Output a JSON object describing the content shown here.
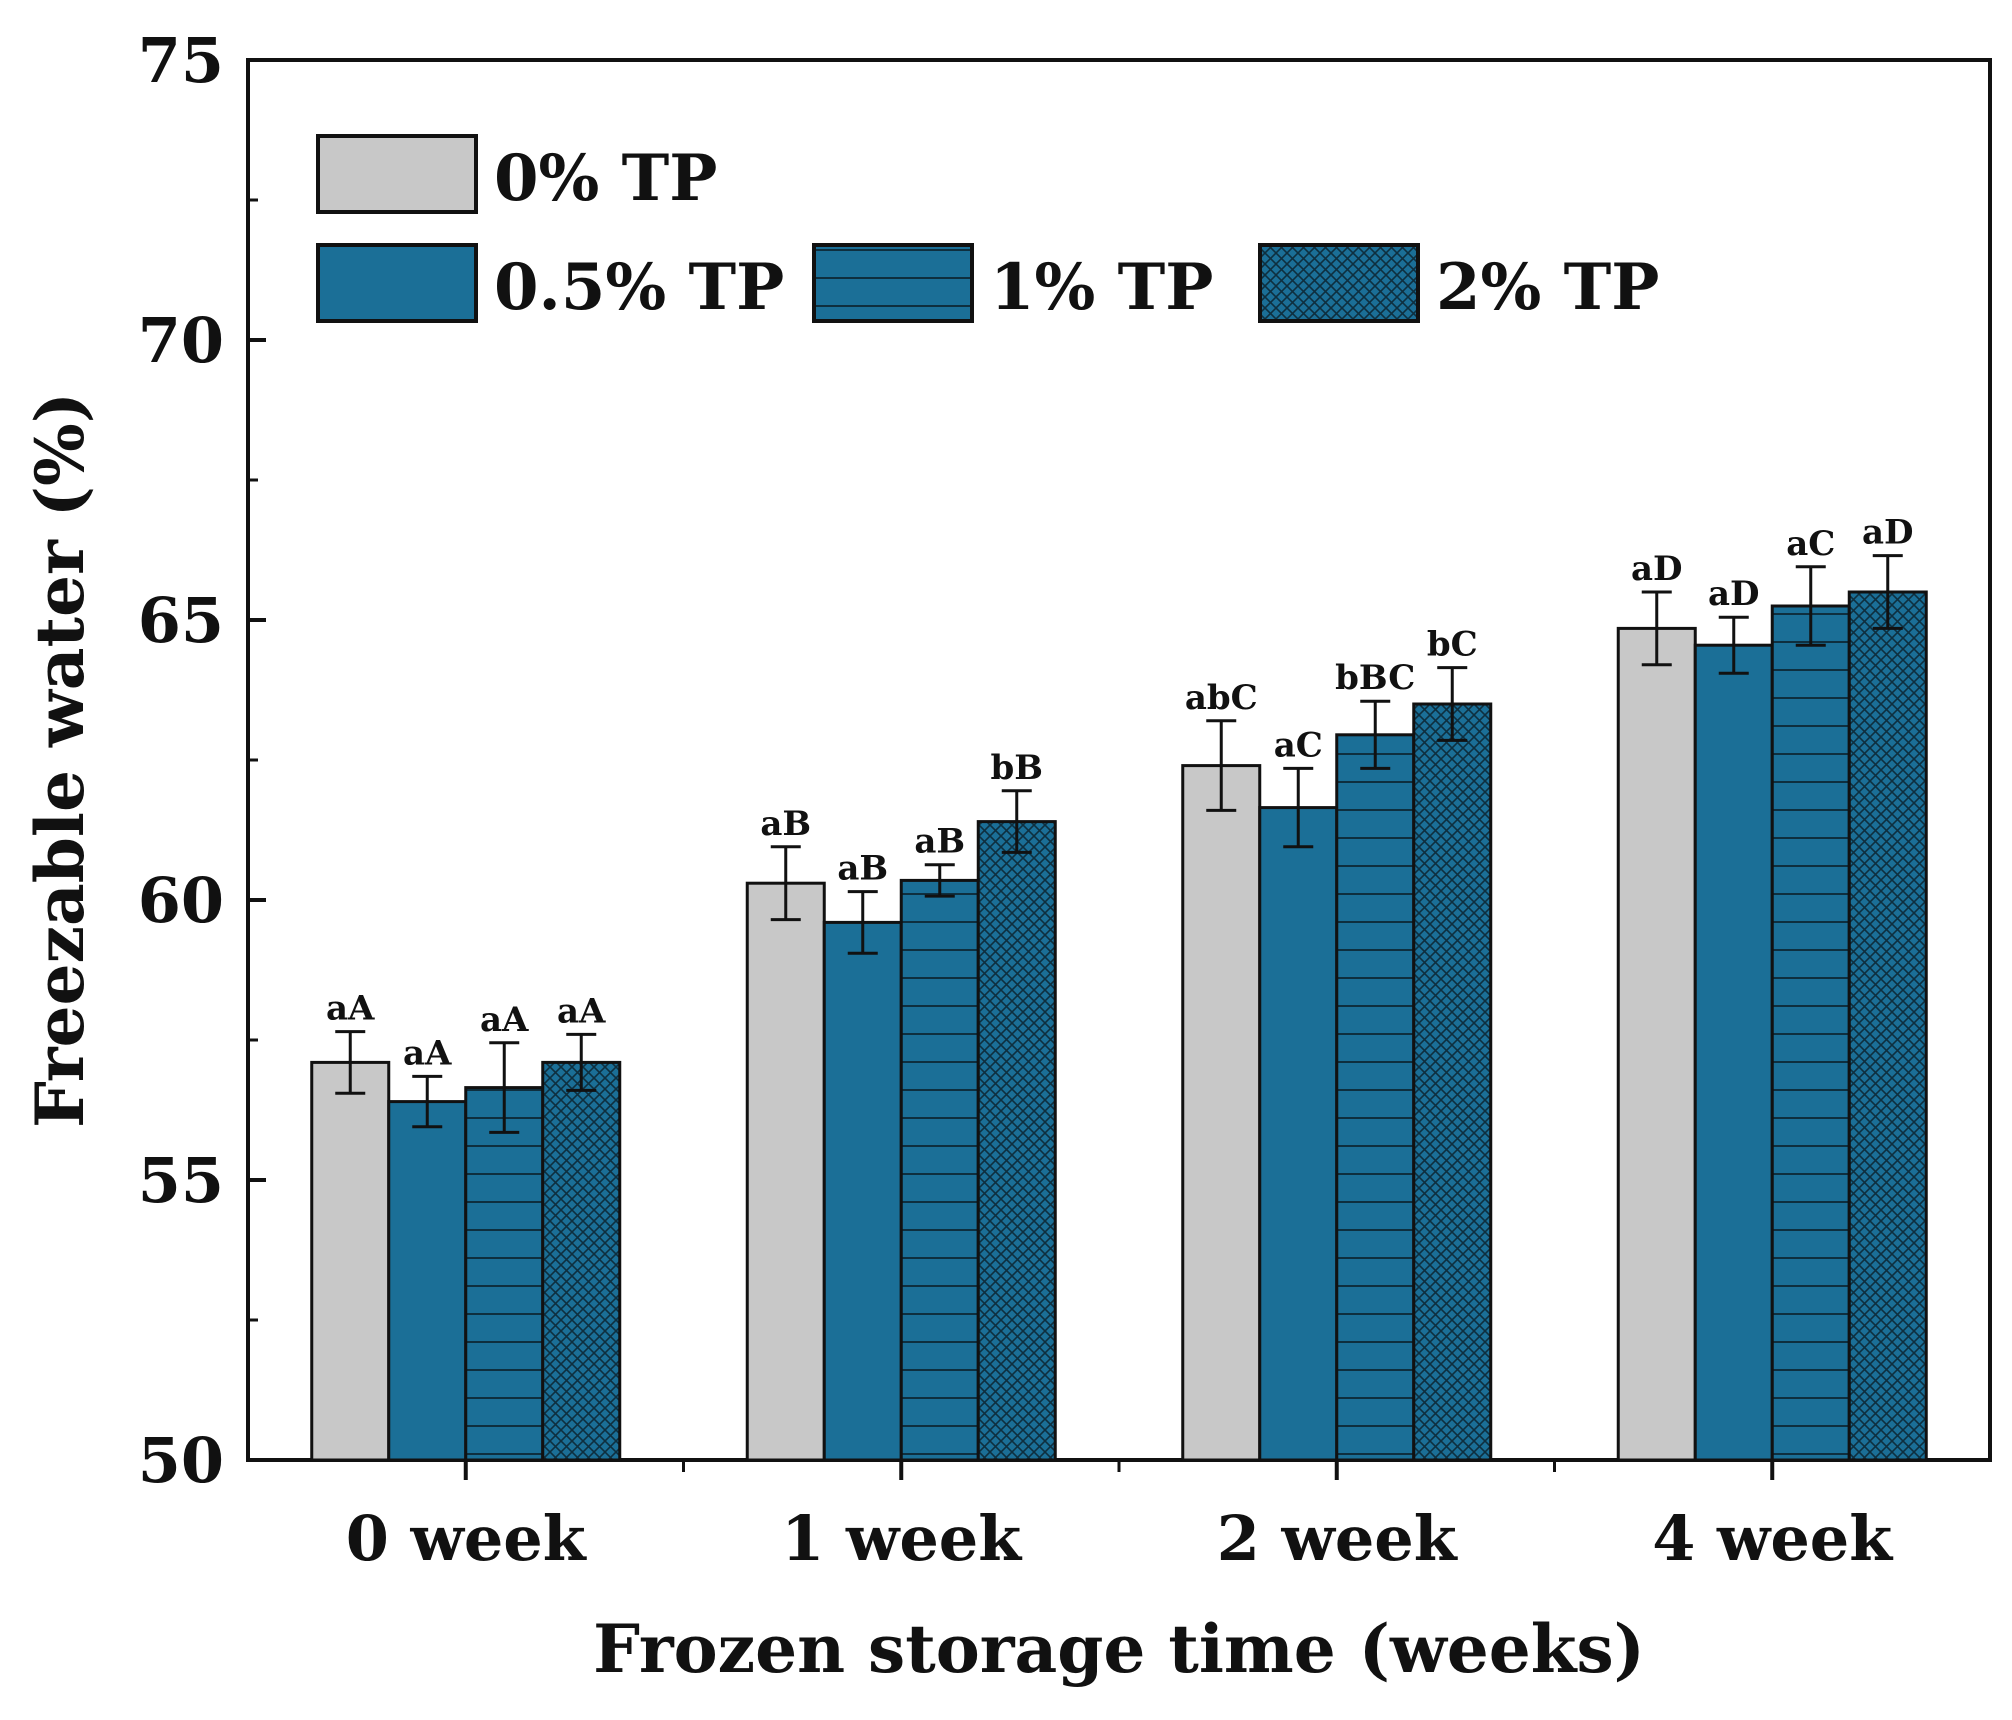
{
  "chart_data": {
    "type": "bar",
    "title": "",
    "xlabel": "Frozen storage time (weeks)",
    "ylabel": "Freezable water (%)",
    "ylim": [
      50,
      75
    ],
    "yticks": [
      50,
      55,
      60,
      65,
      70,
      75
    ],
    "legend_position": "top-left",
    "categories": [
      "0 week",
      "1 week",
      "2 week",
      "4 week"
    ],
    "series": [
      {
        "name": "0% TP",
        "color": "#c8c8c8",
        "pattern": "solid",
        "values": [
          57.1,
          60.3,
          62.4,
          64.85
        ],
        "errors": [
          0.55,
          0.65,
          0.8,
          0.65
        ],
        "labels": [
          "aA",
          "aB",
          "abC",
          "aD"
        ]
      },
      {
        "name": "0.5% TP",
        "color": "#1b6f97",
        "pattern": "solid",
        "values": [
          56.4,
          59.6,
          61.65,
          64.55
        ],
        "errors": [
          0.45,
          0.55,
          0.7,
          0.5
        ],
        "labels": [
          "aA",
          "aB",
          "aC",
          "aD"
        ]
      },
      {
        "name": "1% TP",
        "color": "#1b6f97",
        "pattern": "horizontal-lines",
        "values": [
          56.65,
          60.35,
          62.95,
          65.25
        ],
        "errors": [
          0.8,
          0.28,
          0.6,
          0.7
        ],
        "labels": [
          "aA",
          "aB",
          "bBC",
          "aC"
        ]
      },
      {
        "name": "2% TP",
        "color": "#1b6f97",
        "pattern": "crosshatch",
        "values": [
          57.1,
          61.4,
          63.5,
          65.5
        ],
        "errors": [
          0.5,
          0.55,
          0.65,
          0.65
        ],
        "labels": [
          "aA",
          "bB",
          "bC",
          "aD"
        ]
      }
    ]
  }
}
